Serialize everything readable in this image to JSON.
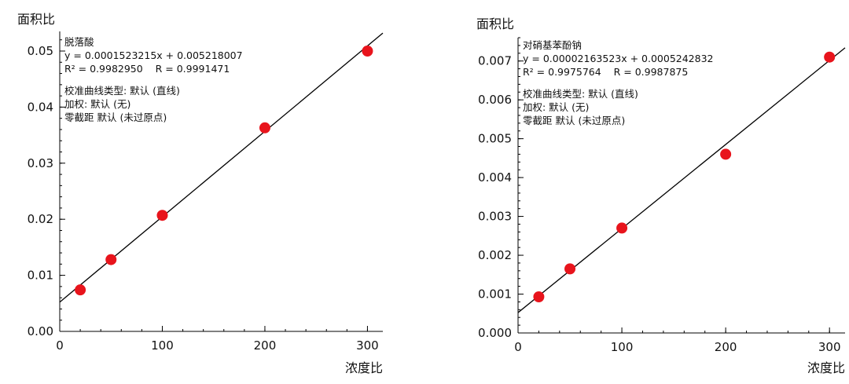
{
  "chart_data": [
    {
      "type": "scatter",
      "ylabel": "面积比",
      "xlabel": "浓度比",
      "xlim": [
        0,
        315
      ],
      "ylim": [
        0,
        0.0535
      ],
      "xticks": [
        "0",
        "100",
        "200",
        "300"
      ],
      "xtick_values": [
        0,
        100,
        200,
        300
      ],
      "yticks": [
        "0.00",
        "0.01",
        "0.02",
        "0.03",
        "0.04",
        "0.05"
      ],
      "ytick_values": [
        0,
        0.01,
        0.02,
        0.03,
        0.04,
        0.05
      ],
      "y_minor_step": 0.002,
      "x_minor_step": 20,
      "fit": {
        "slope": 0.0001523215,
        "intercept": 0.005218007
      },
      "points": [
        {
          "x": 20,
          "y": 0.0074
        },
        {
          "x": 50,
          "y": 0.0128
        },
        {
          "x": 100,
          "y": 0.0207
        },
        {
          "x": 200,
          "y": 0.0363
        },
        {
          "x": 300,
          "y": 0.05
        }
      ],
      "annotation": {
        "compound": "脱落酸",
        "equation": "y = 0.0001523215x + 0.005218007",
        "r_stats": "R² = 0.9982950    R = 0.9991471",
        "calibration_type": "校准曲线类型: 默认 (直线)",
        "weighting": "加权: 默认 (无)",
        "intercept_mode": "零截距 默认 (未过原点)"
      },
      "colors": {
        "point": "#e8141c",
        "line": "#000000"
      }
    },
    {
      "type": "scatter",
      "ylabel": "面积比",
      "xlabel": "浓度比",
      "xlim": [
        0,
        315
      ],
      "ylim": [
        0,
        0.0076
      ],
      "xticks": [
        "0",
        "100",
        "200",
        "300"
      ],
      "xtick_values": [
        0,
        100,
        200,
        300
      ],
      "yticks": [
        "0.000",
        "0.001",
        "0.002",
        "0.003",
        "0.004",
        "0.005",
        "0.006",
        "0.007"
      ],
      "ytick_values": [
        0,
        0.001,
        0.002,
        0.003,
        0.004,
        0.005,
        0.006,
        0.007
      ],
      "y_minor_step": 0.0002,
      "x_minor_step": 20,
      "fit": {
        "slope": 2.163523e-05,
        "intercept": 0.0005242832
      },
      "points": [
        {
          "x": 20,
          "y": 0.00093
        },
        {
          "x": 50,
          "y": 0.00165
        },
        {
          "x": 100,
          "y": 0.0027
        },
        {
          "x": 200,
          "y": 0.0046
        },
        {
          "x": 300,
          "y": 0.0071
        }
      ],
      "annotation": {
        "compound": "对硝基苯酚钠",
        "equation": "y = 0.00002163523x + 0.0005242832",
        "r_stats": "R² = 0.9975764    R = 0.9987875",
        "calibration_type": "校准曲线类型: 默认 (直线)",
        "weighting": "加权: 默认 (无)",
        "intercept_mode": "零截距 默认 (未过原点)"
      },
      "colors": {
        "point": "#e8141c",
        "line": "#000000"
      }
    }
  ]
}
